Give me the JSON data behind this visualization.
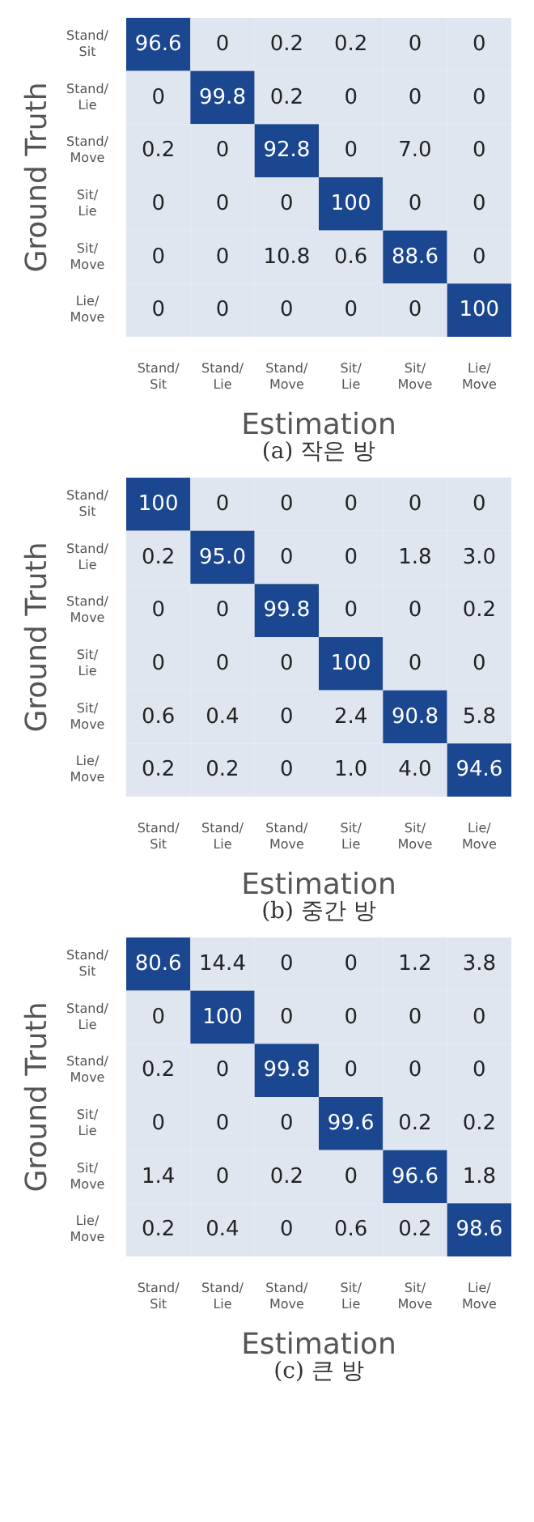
{
  "chart_data": [
    {
      "type": "heatmap",
      "xlabel": "Estimation",
      "ylabel": "Ground Truth",
      "annotations": [
        "(a) 작은 방"
      ],
      "categories": [
        "Stand/Sit",
        "Stand/Lie",
        "Stand/Move",
        "Sit/Lie",
        "Sit/Move",
        "Lie/Move"
      ],
      "y_categories": [
        "Stand/Sit",
        "Stand/Lie",
        "Stand/Move",
        "Sit/Lie",
        "Sit/Move",
        "Lie/Move"
      ],
      "cells": [
        [
          96.6,
          0,
          0.2,
          0.2,
          0,
          0
        ],
        [
          0,
          99.8,
          0.2,
          0,
          0,
          0
        ],
        [
          0.2,
          0,
          92.8,
          0,
          7.0,
          0
        ],
        [
          0,
          0,
          0,
          100,
          0,
          0
        ],
        [
          0,
          0,
          10.8,
          0.6,
          88.6,
          0
        ],
        [
          0,
          0,
          0,
          0,
          0,
          100
        ]
      ],
      "cell_labels": [
        [
          "96.6",
          "0",
          "0.2",
          "0.2",
          "0",
          "0"
        ],
        [
          "0",
          "99.8",
          "0.2",
          "0",
          "0",
          "0"
        ],
        [
          "0.2",
          "0",
          "92.8",
          "0",
          "7.0",
          "0"
        ],
        [
          "0",
          "0",
          "0",
          "100",
          "0",
          "0"
        ],
        [
          "0",
          "0",
          "10.8",
          "0.6",
          "88.6",
          "0"
        ],
        [
          "0",
          "0",
          "0",
          "0",
          "0",
          "100"
        ]
      ]
    },
    {
      "type": "heatmap",
      "xlabel": "Estimation",
      "ylabel": "Ground Truth",
      "annotations": [
        "(b) 중간 방"
      ],
      "categories": [
        "Stand/Sit",
        "Stand/Lie",
        "Stand/Move",
        "Sit/Lie",
        "Sit/Move",
        "Lie/Move"
      ],
      "y_categories": [
        "Stand/Sit",
        "Stand/Lie",
        "Stand/Move",
        "Sit/Lie",
        "Sit/Move",
        "Lie/Move"
      ],
      "cells": [
        [
          100,
          0,
          0,
          0,
          0,
          0
        ],
        [
          0.2,
          95.0,
          0,
          0,
          1.8,
          3.0
        ],
        [
          0,
          0,
          99.8,
          0,
          0,
          0.2
        ],
        [
          0,
          0,
          0,
          100,
          0,
          0
        ],
        [
          0.6,
          0.4,
          0,
          2.4,
          90.8,
          5.8
        ],
        [
          0.2,
          0.2,
          0,
          1.0,
          4.0,
          94.6
        ]
      ],
      "cell_labels": [
        [
          "100",
          "0",
          "0",
          "0",
          "0",
          "0"
        ],
        [
          "0.2",
          "95.0",
          "0",
          "0",
          "1.8",
          "3.0"
        ],
        [
          "0",
          "0",
          "99.8",
          "0",
          "0",
          "0.2"
        ],
        [
          "0",
          "0",
          "0",
          "100",
          "0",
          "0"
        ],
        [
          "0.6",
          "0.4",
          "0",
          "2.4",
          "90.8",
          "5.8"
        ],
        [
          "0.2",
          "0.2",
          "0",
          "1.0",
          "4.0",
          "94.6"
        ]
      ]
    },
    {
      "type": "heatmap",
      "xlabel": "Estimation",
      "ylabel": "Ground Truth",
      "annotations": [
        "(c) 큰 방"
      ],
      "categories": [
        "Stand/Sit",
        "Stand/Lie",
        "Stand/Move",
        "Sit/Lie",
        "Sit/Move",
        "Lie/Move"
      ],
      "y_categories": [
        "Stand/Sit",
        "Stand/Lie",
        "Stand/Move",
        "Sit/Lie",
        "Sit/Move",
        "Lie/Move"
      ],
      "cells": [
        [
          80.6,
          14.4,
          0,
          0,
          1.2,
          3.8
        ],
        [
          0,
          100,
          0,
          0,
          0,
          0
        ],
        [
          0.2,
          0,
          99.8,
          0,
          0,
          0
        ],
        [
          0,
          0,
          0,
          99.6,
          0.2,
          0.2
        ],
        [
          1.4,
          0,
          0.2,
          0,
          96.6,
          1.8
        ],
        [
          0.2,
          0.4,
          0,
          0.6,
          0.2,
          98.6
        ]
      ],
      "cell_labels": [
        [
          "80.6",
          "14.4",
          "0",
          "0",
          "1.2",
          "3.8"
        ],
        [
          "0",
          "100",
          "0",
          "0",
          "0",
          "0"
        ],
        [
          "0.2",
          "0",
          "99.8",
          "0",
          "0",
          "0"
        ],
        [
          "0",
          "0",
          "0",
          "99.6",
          "0.2",
          "0.2"
        ],
        [
          "1.4",
          "0",
          "0.2",
          "0",
          "96.6",
          "1.8"
        ],
        [
          "0.2",
          "0.4",
          "0",
          "0.6",
          "0.2",
          "98.6"
        ]
      ]
    }
  ]
}
